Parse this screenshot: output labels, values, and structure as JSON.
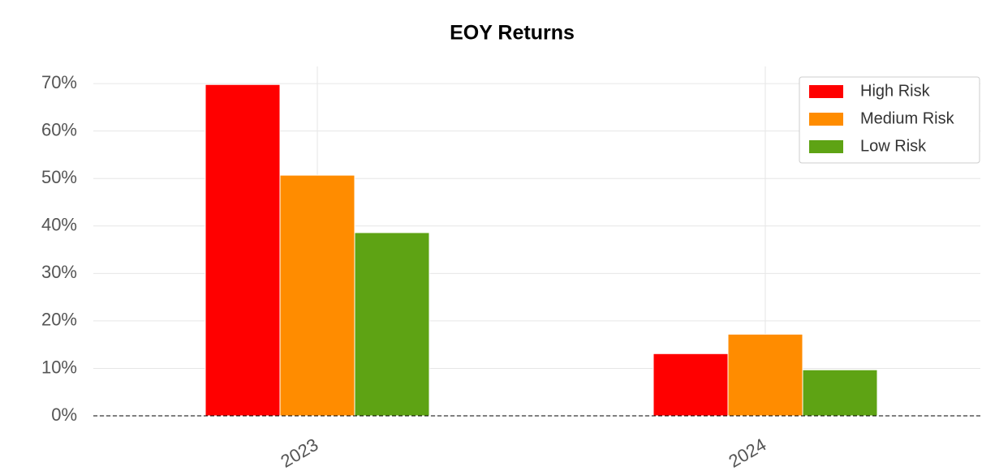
{
  "chart_data": {
    "type": "bar",
    "title": "EOY Returns",
    "categories": [
      "2023",
      "2024"
    ],
    "series": [
      {
        "name": "High Risk",
        "color": "#ff0000",
        "values": [
          69.8,
          13.1
        ]
      },
      {
        "name": "Medium Risk",
        "color": "#ff8c00",
        "values": [
          50.7,
          17.2
        ]
      },
      {
        "name": "Low Risk",
        "color": "#5ea314",
        "values": [
          38.6,
          9.7
        ]
      }
    ],
    "ylim": [
      0,
      73.6
    ],
    "yticks": [
      {
        "value": 0,
        "label": "0%"
      },
      {
        "value": 10,
        "label": "10%"
      },
      {
        "value": 20,
        "label": "20%"
      },
      {
        "value": 30,
        "label": "30%"
      },
      {
        "value": 40,
        "label": "40%"
      },
      {
        "value": 50,
        "label": "50%"
      },
      {
        "value": 60,
        "label": "60%"
      },
      {
        "value": 70,
        "label": "70%"
      }
    ],
    "grid": true,
    "legend": "upper right"
  }
}
